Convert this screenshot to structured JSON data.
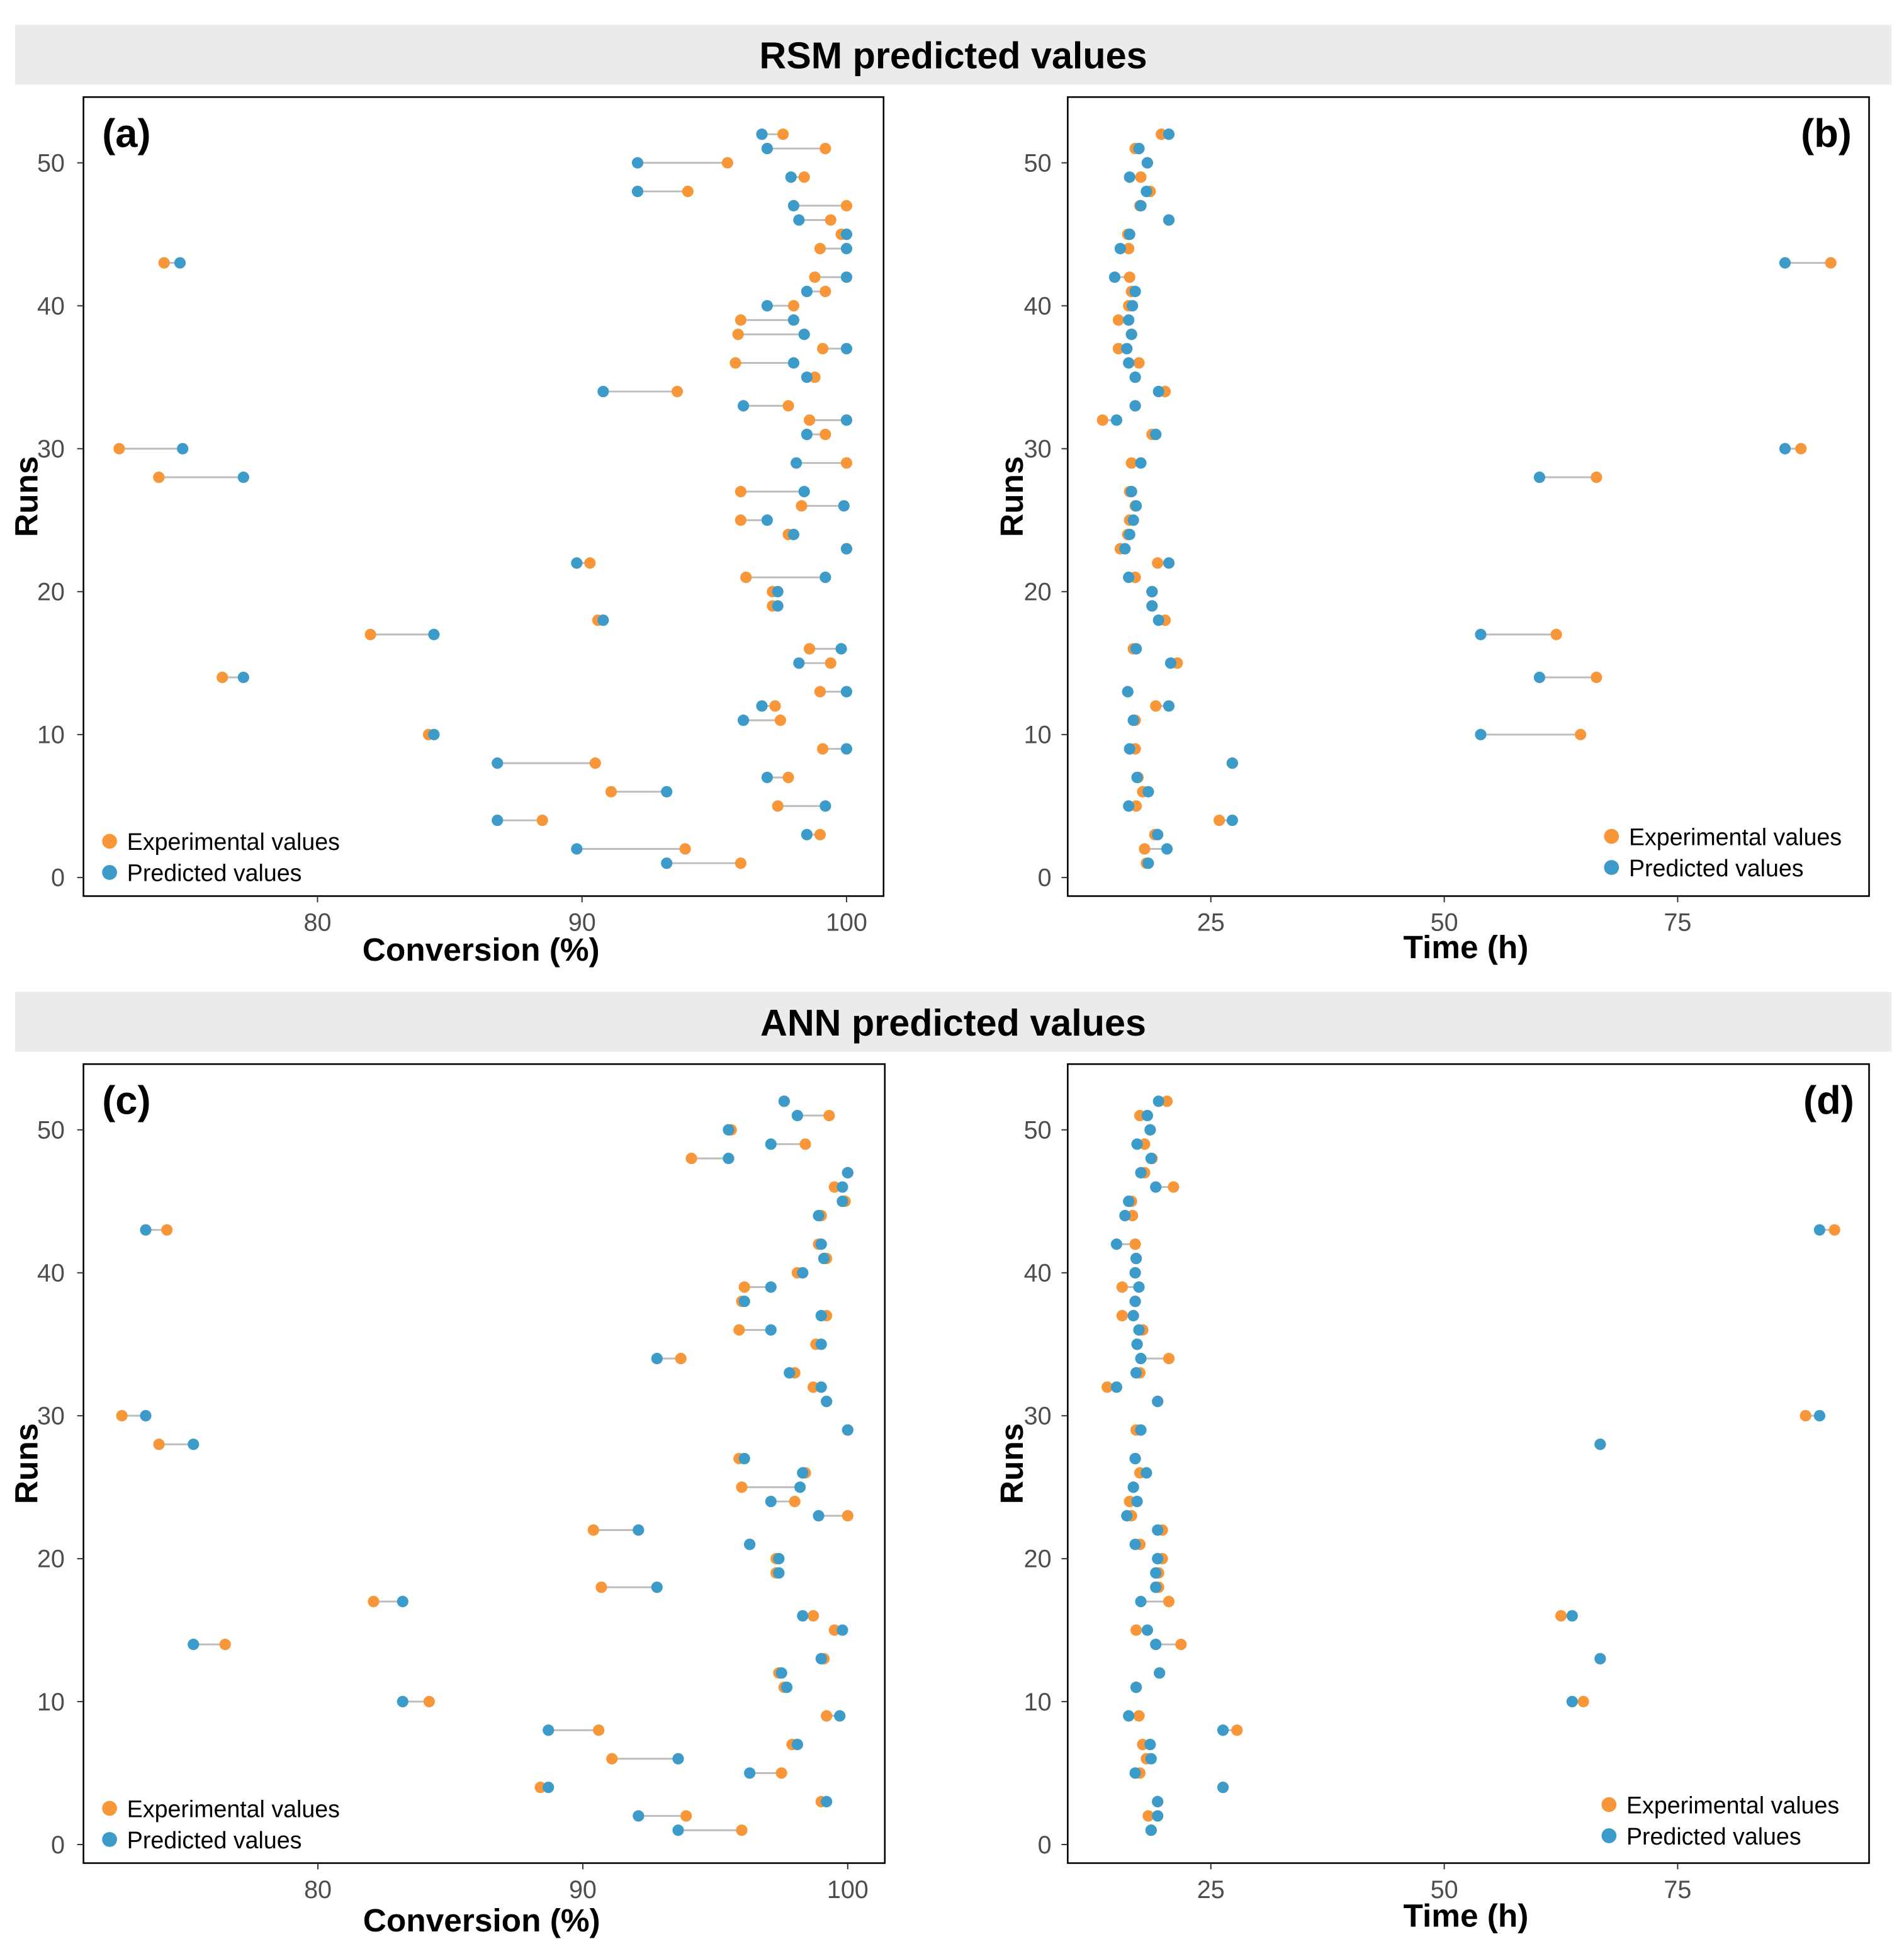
{
  "colors": {
    "experimental": "#F8973A",
    "predicted": "#3C9BC9",
    "segment": "#BDBDBD",
    "strip": "#EBEBEB"
  },
  "strips": [
    "RSM predicted values",
    "ANN predicted values"
  ],
  "legend": {
    "experimental": "Experimental values",
    "predicted": "Predicted values"
  },
  "chart_data": [
    {
      "type": "scatter",
      "label": "(a)",
      "group": "RSM predicted values",
      "xlabel": "Conversion (%)",
      "ylabel": "Runs",
      "xticks": [
        80,
        90,
        100
      ],
      "yticks": [
        0,
        10,
        20,
        30,
        40,
        50
      ],
      "xlim": [
        71.15,
        101.4
      ],
      "ylim": [
        -1.3,
        54.6
      ],
      "legend_position": "bottom-left",
      "runs_start": 1,
      "experimental": [
        96.0,
        93.9,
        99.0,
        88.5,
        97.4,
        91.1,
        97.8,
        90.5,
        99.1,
        84.2,
        97.5,
        97.3,
        99.0,
        76.4,
        99.4,
        98.6,
        82.0,
        90.6,
        97.2,
        97.2,
        96.2,
        90.3,
        100,
        97.8,
        96.0,
        98.3,
        96.0,
        74.0,
        100,
        72.5,
        99.2,
        98.6,
        97.8,
        93.6,
        98.8,
        95.8,
        99.1,
        95.9,
        96.0,
        98.0,
        99.2,
        98.8,
        74.2,
        99.0,
        99.8,
        99.4,
        100,
        94.0,
        98.4,
        95.5,
        99.2,
        97.6
      ],
      "predicted": [
        93.2,
        89.8,
        98.5,
        86.8,
        99.2,
        93.2,
        97.0,
        86.8,
        100,
        84.4,
        96.1,
        96.8,
        100,
        77.2,
        98.2,
        99.8,
        84.4,
        90.8,
        97.4,
        97.4,
        99.2,
        89.8,
        100,
        98.0,
        97.0,
        99.9,
        98.4,
        77.2,
        98.1,
        74.9,
        98.5,
        100,
        96.1,
        90.8,
        98.5,
        98.0,
        100,
        98.4,
        98.0,
        97.0,
        98.5,
        100,
        74.8,
        100,
        100,
        98.2,
        98.0,
        92.1,
        97.9,
        92.1,
        97.0,
        96.8
      ]
    },
    {
      "type": "scatter",
      "label": "(b)",
      "group": "RSM predicted values",
      "xlabel": "Time (h)",
      "ylabel": "Runs",
      "xticks": [
        25,
        50,
        75
      ],
      "yticks": [
        0,
        10,
        20,
        30,
        40,
        50
      ],
      "xlim": [
        9.67,
        95.5
      ],
      "ylim": [
        -1.3,
        54.6
      ],
      "legend_position": "bottom-right",
      "runs_start": 1,
      "experimental": [
        18.1,
        17.9,
        19.0,
        25.9,
        17.0,
        17.7,
        17.2,
        27.3,
        16.9,
        64.6,
        16.9,
        19.1,
        16.1,
        66.3,
        21.4,
        16.7,
        62.0,
        20.1,
        18.7,
        18.7,
        16.9,
        19.3,
        15.3,
        16.1,
        16.3,
        16.9,
        16.3,
        66.3,
        16.5,
        88.2,
        18.7,
        13.4,
        16.9,
        20.1,
        16.9,
        17.3,
        15.1,
        16.5,
        15.1,
        16.2,
        16.5,
        16.3,
        91.4,
        16.2,
        16.1,
        20.5,
        17.4,
        18.5,
        17.5,
        18.2,
        16.9,
        19.7
      ],
      "predicted": [
        18.3,
        20.3,
        19.3,
        27.3,
        16.2,
        18.3,
        17.1,
        27.3,
        16.3,
        53.9,
        16.7,
        20.5,
        16.1,
        60.2,
        20.7,
        17.0,
        53.9,
        19.4,
        18.7,
        18.7,
        16.2,
        20.5,
        15.8,
        16.3,
        16.7,
        17.0,
        16.5,
        60.2,
        17.5,
        86.5,
        19.1,
        14.9,
        16.9,
        19.4,
        16.9,
        16.2,
        16.0,
        16.5,
        16.2,
        16.6,
        16.9,
        14.7,
        86.5,
        15.3,
        16.3,
        20.5,
        17.5,
        18.1,
        16.3,
        18.2,
        17.3,
        20.5
      ]
    },
    {
      "type": "scatter",
      "label": "(c)",
      "group": "ANN predicted values",
      "xlabel": "Conversion (%)",
      "ylabel": "Runs",
      "xticks": [
        80,
        90,
        100
      ],
      "yticks": [
        0,
        10,
        20,
        30,
        40,
        50
      ],
      "xlim": [
        71.15,
        101.4
      ],
      "ylim": [
        -1.3,
        54.6
      ],
      "legend_position": "bottom-left",
      "runs_start": 1,
      "experimental": [
        96.0,
        93.9,
        99.0,
        88.4,
        97.5,
        91.1,
        97.9,
        90.6,
        99.2,
        84.2,
        97.6,
        97.4,
        99.1,
        76.5,
        99.5,
        98.7,
        82.1,
        90.7,
        97.3,
        97.3,
        96.3,
        90.4,
        100,
        98.0,
        96.0,
        98.4,
        95.9,
        74.0,
        100,
        72.6,
        99.2,
        98.7,
        98.0,
        93.7,
        98.8,
        95.9,
        99.2,
        96.0,
        96.1,
        98.1,
        99.2,
        98.9,
        74.3,
        99.0,
        99.9,
        99.5,
        100,
        94.1,
        98.4,
        95.6,
        99.3,
        97.6
      ],
      "predicted": [
        93.6,
        92.1,
        99.2,
        88.7,
        96.3,
        93.6,
        98.1,
        88.7,
        99.7,
        83.2,
        97.7,
        97.5,
        99.0,
        75.3,
        99.8,
        98.3,
        83.2,
        92.8,
        97.4,
        97.4,
        96.3,
        92.1,
        98.9,
        97.1,
        98.2,
        98.3,
        96.1,
        75.3,
        100,
        73.5,
        99.2,
        99.0,
        97.8,
        92.8,
        99.0,
        97.1,
        99.0,
        96.1,
        97.1,
        98.3,
        99.1,
        99.0,
        73.5,
        98.9,
        99.8,
        99.8,
        100,
        95.5,
        97.1,
        95.5,
        98.1,
        97.6
      ]
    },
    {
      "type": "scatter",
      "label": "(d)",
      "group": "ANN predicted values",
      "xlabel": "Time (h)",
      "ylabel": "Runs",
      "xticks": [
        25,
        50,
        75
      ],
      "yticks": [
        0,
        10,
        20,
        30,
        40,
        50
      ],
      "xlim": [
        9.67,
        95.5
      ],
      "ylim": [
        -1.3,
        54.6
      ],
      "legend_position": "bottom-right",
      "runs_start": 1,
      "experimental": [
        18.6,
        18.3,
        19.3,
        26.3,
        17.4,
        18.1,
        17.7,
        27.8,
        17.3,
        64.9,
        17.0,
        19.5,
        66.7,
        21.8,
        17.0,
        62.5,
        20.5,
        19.4,
        19.4,
        19.8,
        17.4,
        19.8,
        16.5,
        16.3,
        16.7,
        17.4,
        16.9,
        66.7,
        17.0,
        88.7,
        19.3,
        13.9,
        17.4,
        20.5,
        17.1,
        17.7,
        15.5,
        16.9,
        15.5,
        16.9,
        17.0,
        16.9,
        91.8,
        16.6,
        16.5,
        21.0,
        17.9,
        18.7,
        17.9,
        18.5,
        17.4,
        20.3
      ],
      "predicted": [
        18.6,
        19.3,
        19.3,
        26.3,
        16.9,
        18.6,
        18.5,
        26.3,
        16.2,
        63.7,
        17.0,
        19.5,
        66.7,
        19.1,
        18.2,
        63.7,
        17.5,
        19.1,
        19.1,
        19.3,
        16.9,
        19.3,
        16.0,
        17.1,
        16.7,
        18.1,
        16.9,
        66.7,
        17.5,
        90.2,
        19.3,
        14.9,
        17.0,
        17.5,
        17.1,
        17.3,
        16.7,
        16.9,
        17.3,
        16.9,
        17.0,
        14.9,
        90.2,
        15.8,
        16.2,
        19.1,
        17.5,
        18.6,
        17.1,
        18.5,
        18.2,
        19.4
      ]
    }
  ]
}
